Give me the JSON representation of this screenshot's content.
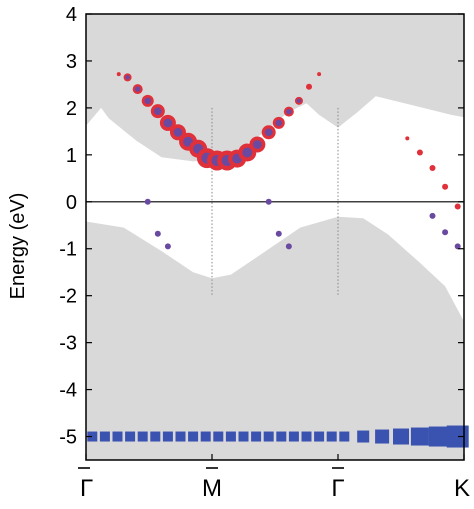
{
  "chart_data": {
    "type": "scatter",
    "ylabel": "Energy (eV)",
    "ylim": [
      -5.5,
      4
    ],
    "yticks": [
      4,
      3,
      2,
      1,
      0,
      -1,
      -2,
      -3,
      -4,
      -5
    ],
    "ytick_labels": [
      "4",
      "3",
      "2",
      "1",
      "0",
      "-1",
      "-2",
      "-3",
      "-4",
      "-5"
    ],
    "xlim": [
      0,
      3
    ],
    "xticks": [
      0,
      1,
      2,
      3
    ],
    "xtick_labels": [
      "Γ",
      "M",
      "Γ",
      "K"
    ],
    "xtick_overbar": [
      true,
      true,
      true,
      false
    ],
    "fermi_level": 0,
    "vertical_guides": [
      1,
      2
    ],
    "grid": false,
    "legend": "none",
    "colors": {
      "projection_fill": "#d9d9d9",
      "conduction_marker": "#e0303a",
      "conduction_core": "#6a4aa0",
      "valence_marker": "#3a52b0",
      "axis": "#000000",
      "guide": "#888888"
    },
    "shaded_regions": [
      {
        "name": "conduction-continuum",
        "upper": [
          [
            0,
            4
          ],
          [
            3,
            4
          ]
        ],
        "lower": [
          [
            0,
            1.62
          ],
          [
            0.12,
            2.0
          ],
          [
            0.18,
            1.78
          ],
          [
            0.4,
            1.3
          ],
          [
            0.6,
            0.95
          ],
          [
            0.85,
            0.86
          ],
          [
            1.0,
            0.9
          ],
          [
            1.2,
            1.1
          ],
          [
            1.4,
            1.45
          ],
          [
            1.6,
            1.9
          ],
          [
            1.75,
            2.1
          ],
          [
            1.85,
            1.85
          ],
          [
            2.0,
            1.58
          ],
          [
            2.15,
            1.9
          ],
          [
            2.3,
            2.25
          ],
          [
            2.6,
            2.05
          ],
          [
            2.9,
            1.85
          ],
          [
            3.0,
            1.8
          ]
        ]
      },
      {
        "name": "valence-continuum",
        "upper": [
          [
            0,
            -0.42
          ],
          [
            0.3,
            -0.55
          ],
          [
            0.6,
            -1.05
          ],
          [
            0.85,
            -1.5
          ],
          [
            1.0,
            -1.63
          ],
          [
            1.15,
            -1.55
          ],
          [
            1.4,
            -1.1
          ],
          [
            1.7,
            -0.55
          ],
          [
            2.0,
            -0.32
          ],
          [
            2.2,
            -0.35
          ],
          [
            2.4,
            -0.7
          ],
          [
            2.65,
            -1.3
          ],
          [
            2.85,
            -1.8
          ],
          [
            3.0,
            -2.55
          ]
        ],
        "lower": [
          [
            0,
            -5.5
          ],
          [
            3,
            -5.5
          ]
        ]
      }
    ],
    "series": [
      {
        "name": "",
        "color": "#e0303a",
        "x": [
          0.26,
          0.33,
          0.41,
          0.49,
          0.57,
          0.65,
          0.73,
          0.81,
          0.89,
          0.96,
          1.04,
          1.12,
          1.2,
          1.28,
          1.36,
          1.45,
          1.53,
          1.61,
          1.69,
          1.77,
          1.85,
          2.55,
          2.65,
          2.75,
          2.85,
          2.95
        ],
        "y": [
          2.72,
          2.65,
          2.4,
          2.15,
          1.93,
          1.68,
          1.48,
          1.28,
          1.13,
          0.93,
          0.88,
          0.88,
          0.92,
          1.05,
          1.22,
          1.48,
          1.68,
          1.92,
          2.15,
          2.45,
          2.72,
          1.35,
          1.05,
          0.72,
          0.32,
          -0.1
        ],
        "sizes": [
          2,
          4,
          5,
          6,
          7,
          8,
          8,
          9,
          9,
          10,
          10,
          10,
          9,
          9,
          8,
          7,
          6,
          5,
          4,
          3,
          2,
          2,
          3,
          3,
          3,
          3
        ]
      },
      {
        "name": "",
        "color": "#6a4aa0",
        "x": [
          0.49,
          0.57,
          0.65,
          1.45,
          1.53,
          1.61,
          2.75,
          2.85,
          2.95
        ],
        "y": [
          0,
          -0.68,
          -0.95,
          0,
          -0.68,
          -0.95,
          -0.3,
          -0.65,
          -0.95
        ],
        "sizes": [
          3,
          3,
          3,
          3,
          3,
          3,
          3,
          3,
          3
        ]
      },
      {
        "name": "",
        "color": "#3a52b0",
        "x": [
          0.05,
          0.15,
          0.25,
          0.35,
          0.45,
          0.55,
          0.65,
          0.75,
          0.85,
          0.95,
          1.05,
          1.15,
          1.25,
          1.35,
          1.45,
          1.55,
          1.65,
          1.75,
          1.85,
          1.95,
          2.05,
          2.2,
          2.35,
          2.5,
          2.65,
          2.8,
          2.95
        ],
        "y": [
          -5.0,
          -5.0,
          -5.0,
          -5.0,
          -5.0,
          -5.0,
          -5.0,
          -5.0,
          -5.0,
          -5.0,
          -5.0,
          -5.0,
          -5.0,
          -5.0,
          -5.0,
          -5.0,
          -5.0,
          -5.0,
          -5.0,
          -5.0,
          -5.0,
          -5.0,
          -5.0,
          -5.0,
          -5.0,
          -5.0,
          -5.0
        ],
        "sizes": [
          5,
          5,
          5,
          5,
          5,
          5,
          5,
          5,
          5,
          5,
          5,
          5,
          5,
          5,
          5,
          5,
          5,
          5,
          5,
          5,
          5,
          6,
          7,
          8,
          9,
          10,
          11
        ]
      }
    ]
  }
}
